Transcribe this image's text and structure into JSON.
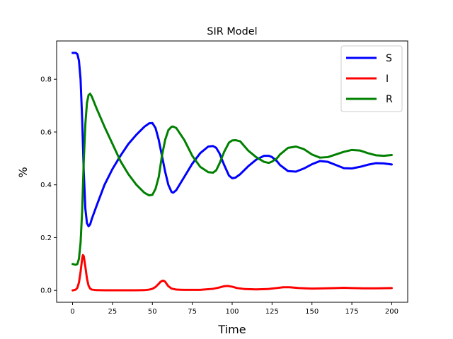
{
  "chart_data": {
    "type": "line",
    "title": "SIR Model",
    "xlabel": "Time",
    "ylabel": "%",
    "xlim": [
      -10,
      210
    ],
    "ylim": [
      -0.045,
      0.945
    ],
    "xticks": [
      0,
      25,
      50,
      75,
      100,
      125,
      150,
      175,
      200
    ],
    "yticks": [
      0.0,
      0.2,
      0.4,
      0.6,
      0.8
    ],
    "ytick_labels": [
      "0.0",
      "0.2",
      "0.4",
      "0.6",
      "0.8"
    ],
    "grid": false,
    "legend_position": "top-right",
    "series": [
      {
        "name": "S",
        "color": "#0000ff",
        "x": [
          0,
          2,
          3,
          4,
          5,
          6,
          7,
          8,
          9,
          10,
          11,
          12,
          15,
          20,
          25,
          30,
          35,
          40,
          45,
          48,
          50,
          52,
          54,
          56,
          58,
          60,
          62,
          63,
          65,
          70,
          75,
          80,
          85,
          88,
          90,
          92,
          95,
          98,
          100,
          102,
          105,
          110,
          115,
          120,
          123,
          125,
          128,
          130,
          135,
          140,
          145,
          150,
          155,
          160,
          165,
          170,
          175,
          180,
          185,
          190,
          195,
          200
        ],
        "y": [
          0.9,
          0.9,
          0.895,
          0.87,
          0.8,
          0.65,
          0.45,
          0.31,
          0.255,
          0.243,
          0.25,
          0.27,
          0.32,
          0.4,
          0.46,
          0.51,
          0.555,
          0.59,
          0.62,
          0.633,
          0.634,
          0.615,
          0.57,
          0.51,
          0.45,
          0.4,
          0.373,
          0.37,
          0.38,
          0.43,
          0.48,
          0.52,
          0.545,
          0.547,
          0.54,
          0.52,
          0.475,
          0.435,
          0.425,
          0.427,
          0.44,
          0.47,
          0.495,
          0.51,
          0.51,
          0.505,
          0.49,
          0.475,
          0.452,
          0.45,
          0.462,
          0.478,
          0.49,
          0.487,
          0.475,
          0.463,
          0.462,
          0.468,
          0.476,
          0.482,
          0.481,
          0.477
        ]
      },
      {
        "name": "I",
        "color": "#ff0000",
        "x": [
          0,
          2,
          3,
          4,
          5,
          6,
          6.5,
          7,
          8,
          9,
          10,
          11,
          12,
          15,
          20,
          30,
          40,
          45,
          48,
          50,
          52,
          54,
          55,
          56,
          57,
          58,
          59,
          60,
          62,
          65,
          70,
          80,
          88,
          92,
          95,
          97,
          100,
          103,
          108,
          115,
          122,
          128,
          132,
          136,
          142,
          150,
          158,
          165,
          170,
          175,
          182,
          190,
          200
        ],
        "y": [
          0.0,
          0.003,
          0.01,
          0.03,
          0.07,
          0.12,
          0.134,
          0.13,
          0.09,
          0.045,
          0.018,
          0.007,
          0.003,
          0.001,
          0.0005,
          0.0004,
          0.0005,
          0.001,
          0.003,
          0.006,
          0.013,
          0.025,
          0.032,
          0.036,
          0.037,
          0.033,
          0.024,
          0.016,
          0.007,
          0.003,
          0.002,
          0.002,
          0.006,
          0.011,
          0.016,
          0.017,
          0.014,
          0.009,
          0.005,
          0.004,
          0.005,
          0.009,
          0.012,
          0.012,
          0.009,
          0.007,
          0.008,
          0.009,
          0.01,
          0.009,
          0.008,
          0.008,
          0.009
        ]
      },
      {
        "name": "R",
        "color": "#008000",
        "x": [
          0,
          2,
          3,
          4,
          5,
          6,
          7,
          8,
          9,
          10,
          11,
          12,
          15,
          20,
          25,
          30,
          35,
          40,
          45,
          48,
          50,
          52,
          54,
          56,
          58,
          60,
          62,
          63,
          65,
          70,
          75,
          80,
          85,
          88,
          90,
          92,
          95,
          98,
          100,
          102,
          103,
          105,
          110,
          115,
          120,
          123,
          125,
          128,
          130,
          135,
          140,
          145,
          150,
          155,
          160,
          165,
          170,
          175,
          180,
          185,
          190,
          195,
          200
        ],
        "y": [
          0.1,
          0.097,
          0.1,
          0.12,
          0.18,
          0.3,
          0.49,
          0.63,
          0.71,
          0.74,
          0.745,
          0.735,
          0.69,
          0.62,
          0.555,
          0.49,
          0.44,
          0.4,
          0.37,
          0.36,
          0.362,
          0.385,
          0.43,
          0.51,
          0.57,
          0.607,
          0.62,
          0.621,
          0.615,
          0.57,
          0.51,
          0.468,
          0.448,
          0.446,
          0.455,
          0.48,
          0.525,
          0.56,
          0.568,
          0.569,
          0.568,
          0.565,
          0.53,
          0.505,
          0.487,
          0.483,
          0.488,
          0.5,
          0.515,
          0.54,
          0.545,
          0.535,
          0.515,
          0.503,
          0.505,
          0.515,
          0.525,
          0.532,
          0.53,
          0.52,
          0.512,
          0.51,
          0.513
        ]
      }
    ]
  }
}
